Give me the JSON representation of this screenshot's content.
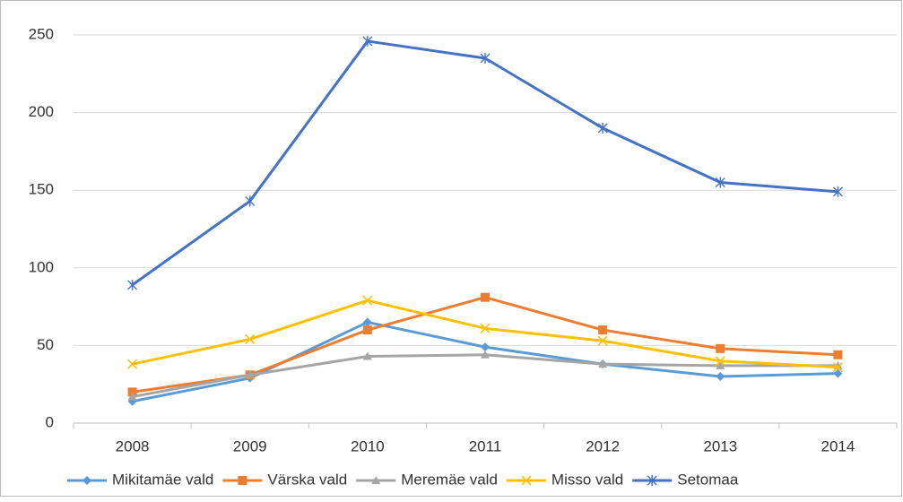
{
  "chart_data": {
    "type": "line",
    "categories": [
      "2008",
      "2009",
      "2010",
      "2011",
      "2012",
      "2013",
      "2014"
    ],
    "series": [
      {
        "name": "Mikitamäe vald",
        "color": "#5b9bd5",
        "marker": "diamond",
        "values": [
          14,
          29,
          65,
          49,
          38,
          30,
          32
        ]
      },
      {
        "name": "Värska vald",
        "color": "#ed7d31",
        "marker": "square",
        "values": [
          20,
          31,
          60,
          81,
          60,
          48,
          44
        ]
      },
      {
        "name": "Meremäe vald",
        "color": "#a5a5a5",
        "marker": "triangle",
        "values": [
          17,
          31,
          43,
          44,
          38,
          37,
          37
        ]
      },
      {
        "name": "Misso vald",
        "color": "#ffc000",
        "marker": "x",
        "values": [
          38,
          54,
          79,
          61,
          53,
          40,
          36
        ]
      },
      {
        "name": "Setomaa",
        "color": "#4472c4",
        "marker": "star",
        "values": [
          89,
          143,
          246,
          235,
          190,
          155,
          149
        ]
      }
    ],
    "ylim": [
      0,
      250
    ],
    "yticks": [
      0,
      50,
      100,
      150,
      200,
      250
    ],
    "grid": true,
    "legend": "bottom"
  }
}
